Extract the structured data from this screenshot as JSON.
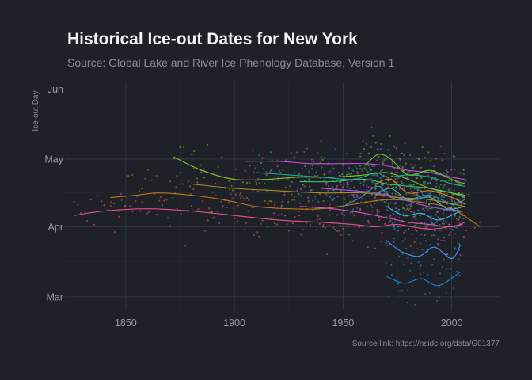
{
  "chart_data": {
    "type": "scatter",
    "title": "Historical Ice-out Dates for New York",
    "subtitle": "Source: Global Lake and River Ice Phenology Database, Version 1",
    "ylabel": "Ice-out Day",
    "xlabel": "",
    "caption": "Source link: https://nsidc.org/data/G01377",
    "x_ticks": [
      1850,
      1900,
      1950,
      2000
    ],
    "x_tick_labels": [
      "1850",
      "1900",
      "1950",
      "2000"
    ],
    "y_ticks": [
      60,
      91,
      121,
      152
    ],
    "y_tick_labels": [
      "Mar",
      "Apr",
      "May",
      "Jun"
    ],
    "xlim": [
      1822,
      2022
    ],
    "ylim": [
      54,
      155
    ],
    "grid": true,
    "legend": "none",
    "colors": {
      "background": "#1e2128",
      "grid": "#363a43",
      "title": "#f2f2f2",
      "text": "#9a9da3"
    },
    "series": [
      {
        "color": "#f0538c",
        "x": [
          1826,
          1840,
          1860,
          1880,
          1900,
          1920,
          1940,
          1955,
          1965,
          1975,
          1990,
          2005
        ],
        "y": [
          96,
          98,
          99,
          98,
          96,
          94,
          93,
          92,
          91,
          92,
          90,
          92
        ]
      },
      {
        "color": "#c57d1a",
        "x": [
          1843,
          1855,
          1865,
          1880,
          1895,
          1910,
          1925,
          1940,
          1955,
          1970,
          1985,
          2000,
          2013
        ],
        "y": [
          104,
          105,
          106,
          105,
          103,
          100,
          99,
          99,
          101,
          103,
          102,
          99,
          91
        ]
      },
      {
        "color": "#8ac926",
        "x": [
          1872,
          1885,
          1900,
          1915,
          1930,
          1945,
          1960,
          1970,
          1980,
          1990,
          2000,
          2006
        ],
        "y": [
          122,
          116,
          112,
          112,
          113,
          113,
          114,
          115,
          112,
          108,
          106,
          105
        ]
      },
      {
        "color": "#d14fe6",
        "x": [
          1905,
          1920,
          1935,
          1950,
          1960,
          1970,
          1980,
          1990,
          2000,
          2006
        ],
        "y": [
          120,
          120,
          119,
          119,
          119,
          118,
          116,
          115,
          113,
          112
        ]
      },
      {
        "color": "#19b4a2",
        "x": [
          1910,
          1925,
          1940,
          1955,
          1965,
          1970,
          1980,
          1990,
          2000,
          2006
        ],
        "y": [
          115,
          114,
          113,
          112,
          115,
          113,
          114,
          113,
          110,
          109
        ]
      },
      {
        "color": "#2f9be4",
        "x": [
          1950,
          1958,
          1966,
          1972,
          1980,
          1990,
          2000,
          2006
        ],
        "y": [
          100,
          104,
          109,
          104,
          103,
          105,
          101,
          103
        ]
      },
      {
        "color": "#6bd12e",
        "x": [
          1960,
          1966,
          1972,
          1980,
          1990,
          2000,
          2006
        ],
        "y": [
          118,
          123,
          121,
          114,
          116,
          112,
          110
        ]
      },
      {
        "color": "#ec8a1f",
        "x": [
          1965,
          1972,
          1980,
          1990,
          2000,
          2006
        ],
        "y": [
          110,
          112,
          106,
          107,
          104,
          101
        ]
      },
      {
        "color": "#3aa3ff",
        "x": [
          1970,
          1977,
          1985,
          1992,
          2000,
          2004
        ],
        "y": [
          85,
          80,
          78,
          82,
          77,
          83
        ]
      },
      {
        "color": "#2dc3e8",
        "x": [
          1970,
          1978,
          1986,
          1994,
          2004
        ],
        "y": [
          100,
          96,
          97,
          94,
          98
        ]
      },
      {
        "color": "#1f86d6",
        "x": [
          1970,
          1978,
          1986,
          1994,
          2004
        ],
        "y": [
          69,
          66,
          68,
          65,
          71
        ]
      },
      {
        "color": "#3bbfb0",
        "x": [
          1965,
          1972,
          1980,
          1990,
          1998,
          2006
        ],
        "y": [
          105,
          108,
          103,
          104,
          99,
          100
        ]
      },
      {
        "color": "#a95cf0",
        "x": [
          1940,
          1955,
          1965,
          1975,
          1985,
          1995,
          2005
        ],
        "y": [
          108,
          107,
          106,
          104,
          101,
          99,
          98
        ]
      },
      {
        "color": "#e05ab8",
        "x": [
          1930,
          1945,
          1960,
          1970,
          1980,
          1990,
          2000,
          2006
        ],
        "y": [
          100,
          99,
          97,
          95,
          93,
          92,
          91,
          93
        ]
      },
      {
        "color": "#b7932b",
        "x": [
          1880,
          1900,
          1920,
          1940,
          1960,
          1975,
          1990,
          2006
        ],
        "y": [
          110,
          108,
          107,
          106,
          106,
          104,
          103,
          100
        ]
      },
      {
        "color": "#42cf6b",
        "x": [
          1930,
          1945,
          1960,
          1970,
          1980,
          1990,
          2000,
          2006
        ],
        "y": [
          111,
          111,
          112,
          110,
          109,
          108,
          106,
          104
        ]
      }
    ]
  }
}
